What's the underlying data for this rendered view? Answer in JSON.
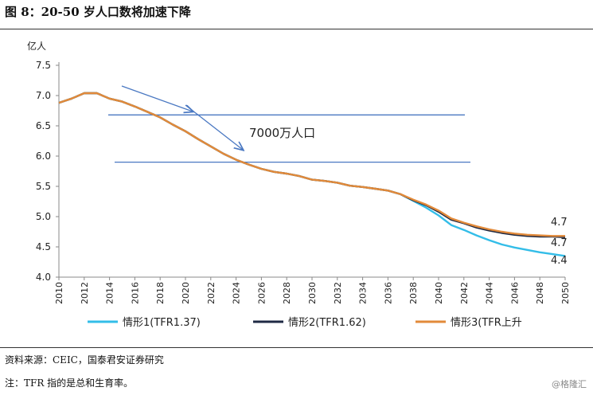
{
  "figure": {
    "title": "图 8：20-50 岁人口数将加速下降",
    "source": "资料来源：CEIC，国泰君安证券研究",
    "note": "注：TFR 指的是总和生育率。",
    "watermark": "@格隆汇"
  },
  "chart_data": {
    "type": "line",
    "title": "",
    "ylabel": "亿人",
    "xlabel": "",
    "ylim": [
      4.0,
      7.5
    ],
    "yticks": [
      "4.0",
      "4.5",
      "5.0",
      "5.5",
      "6.0",
      "6.5",
      "7.0",
      "7.5"
    ],
    "xlim": [
      2010,
      2050
    ],
    "xticks": [
      "2010",
      "2012",
      "2014",
      "2016",
      "2018",
      "2020",
      "2022",
      "2024",
      "2026",
      "2028",
      "2030",
      "2032",
      "2034",
      "2036",
      "2038",
      "2040",
      "2042",
      "2044",
      "2046",
      "2048",
      "2050"
    ],
    "grid": false,
    "legend_position": "bottom",
    "x": [
      2010,
      2011,
      2012,
      2013,
      2014,
      2015,
      2016,
      2017,
      2018,
      2019,
      2020,
      2021,
      2022,
      2023,
      2024,
      2025,
      2026,
      2027,
      2028,
      2029,
      2030,
      2031,
      2032,
      2033,
      2034,
      2035,
      2036,
      2037,
      2038,
      2039,
      2040,
      2041,
      2042,
      2043,
      2044,
      2045,
      2046,
      2047,
      2048,
      2049,
      2050
    ],
    "series": [
      {
        "name": "情形1(TFR1.37)",
        "color": "#33bde8",
        "values": [
          6.88,
          6.95,
          7.04,
          7.04,
          6.95,
          6.9,
          6.82,
          6.73,
          6.64,
          6.52,
          6.41,
          6.28,
          6.16,
          6.04,
          5.94,
          5.86,
          5.79,
          5.74,
          5.71,
          5.67,
          5.61,
          5.59,
          5.56,
          5.51,
          5.49,
          5.46,
          5.43,
          5.37,
          5.26,
          5.15,
          5.02,
          4.86,
          4.78,
          4.69,
          4.61,
          4.54,
          4.49,
          4.45,
          4.41,
          4.38,
          4.35
        ]
      },
      {
        "name": "情形2(TFR1.62)",
        "color": "#1f2a44",
        "values": [
          6.88,
          6.95,
          7.04,
          7.04,
          6.95,
          6.9,
          6.82,
          6.73,
          6.64,
          6.52,
          6.41,
          6.28,
          6.16,
          6.04,
          5.94,
          5.86,
          5.79,
          5.74,
          5.71,
          5.67,
          5.61,
          5.59,
          5.56,
          5.51,
          5.49,
          5.46,
          5.43,
          5.37,
          5.27,
          5.19,
          5.08,
          4.95,
          4.89,
          4.82,
          4.77,
          4.73,
          4.7,
          4.68,
          4.67,
          4.67,
          4.66
        ]
      },
      {
        "name": "情形3(TFR上升",
        "color": "#e28a3a",
        "values": [
          6.88,
          6.95,
          7.04,
          7.04,
          6.95,
          6.9,
          6.82,
          6.73,
          6.64,
          6.52,
          6.41,
          6.28,
          6.16,
          6.04,
          5.94,
          5.86,
          5.79,
          5.74,
          5.71,
          5.67,
          5.61,
          5.59,
          5.56,
          5.51,
          5.49,
          5.46,
          5.43,
          5.37,
          5.28,
          5.2,
          5.1,
          4.97,
          4.9,
          4.84,
          4.79,
          4.75,
          4.72,
          4.7,
          4.69,
          4.68,
          4.68
        ]
      }
    ],
    "end_labels": [
      "4.7",
      "4.7",
      "4.4"
    ],
    "annotation": {
      "text": "7000万人口",
      "upper_level": 6.68,
      "lower_level": 5.9,
      "line_color": "#4a78c2"
    }
  }
}
